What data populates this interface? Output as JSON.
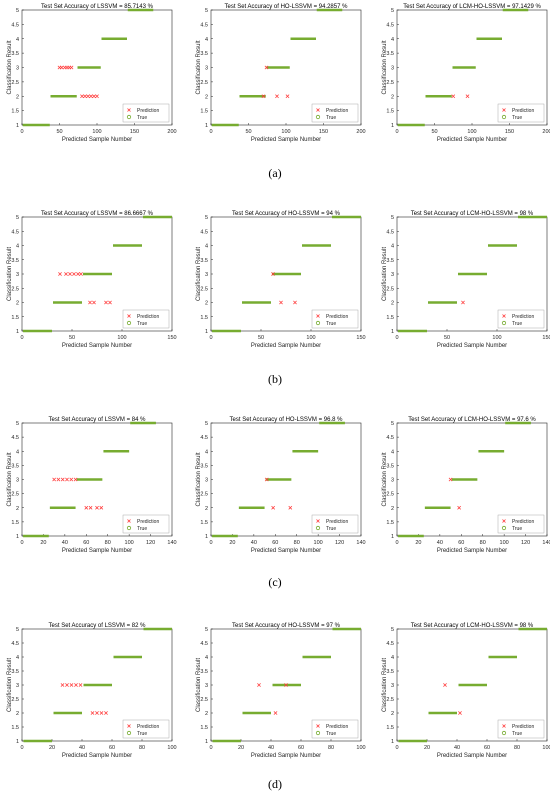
{
  "common": {
    "ylabel": "Classification Result",
    "xlabel": "Predicted Sample Number",
    "legend": [
      "Prediction",
      "True"
    ],
    "yticks": [
      1,
      1.5,
      2,
      2.5,
      3,
      3.5,
      4,
      4.5,
      5
    ],
    "colors": {
      "true": "#77ac30",
      "prediction": "#ff3b3b",
      "axis": "#262626"
    }
  },
  "rows": [
    {
      "label": "(a)",
      "xmax": 200,
      "xticks": [
        0,
        50,
        100,
        150,
        200
      ],
      "classes": [
        [
          1,
          1,
          37
        ],
        [
          2,
          38,
          73
        ],
        [
          3,
          74,
          105
        ],
        [
          4,
          106,
          140
        ],
        [
          5,
          141,
          175
        ]
      ]
    },
    {
      "label": "(b)",
      "xmax": 150,
      "xticks": [
        0,
        50,
        100,
        150
      ],
      "classes": [
        [
          1,
          1,
          30
        ],
        [
          2,
          31,
          60
        ],
        [
          3,
          61,
          90
        ],
        [
          4,
          91,
          120
        ],
        [
          5,
          121,
          150
        ]
      ]
    },
    {
      "label": "(c)",
      "xmax": 140,
      "xticks": [
        0,
        20,
        40,
        60,
        80,
        100,
        120,
        140
      ],
      "classes": [
        [
          1,
          1,
          25
        ],
        [
          2,
          26,
          50
        ],
        [
          3,
          51,
          75
        ],
        [
          4,
          76,
          100
        ],
        [
          5,
          101,
          125
        ]
      ]
    },
    {
      "label": "(d)",
      "xmax": 100,
      "xticks": [
        0,
        20,
        40,
        60,
        80,
        100
      ],
      "classes": [
        [
          1,
          1,
          20
        ],
        [
          2,
          21,
          40
        ],
        [
          3,
          41,
          60
        ],
        [
          4,
          61,
          80
        ],
        [
          5,
          81,
          100
        ]
      ]
    }
  ],
  "chart_data": [
    {
      "type": "scatter",
      "row": 0,
      "col": 0,
      "title": "Test Set Accuracy of LSSVM = 85.7143 %",
      "xlim": [
        0,
        200
      ],
      "ylim": [
        1,
        5
      ],
      "errors": [
        [
          50,
          3
        ],
        [
          53,
          3
        ],
        [
          57,
          3
        ],
        [
          60,
          3
        ],
        [
          63,
          3
        ],
        [
          66,
          3
        ],
        [
          80,
          2
        ],
        [
          84,
          2
        ],
        [
          88,
          2
        ],
        [
          92,
          2
        ],
        [
          96,
          2
        ],
        [
          100,
          2
        ]
      ]
    },
    {
      "type": "scatter",
      "row": 0,
      "col": 1,
      "title": "Test Set Accuracy of HO-LSSVM = 94.2857 %",
      "xlim": [
        0,
        200
      ],
      "ylim": [
        1,
        5
      ],
      "errors": [
        [
          70,
          2
        ],
        [
          74,
          3
        ],
        [
          88,
          2
        ],
        [
          102,
          2
        ]
      ]
    },
    {
      "type": "scatter",
      "row": 0,
      "col": 2,
      "title": "Test Set Accuracy of LCM-HO-LSSVM = 97.1429 %",
      "xlim": [
        0,
        200
      ],
      "ylim": [
        1,
        5
      ],
      "errors": [
        [
          75,
          2
        ],
        [
          94,
          2
        ]
      ]
    },
    {
      "type": "scatter",
      "row": 1,
      "col": 0,
      "title": "Test Set Accuracy of LSSVM = 86.6667 %",
      "xlim": [
        0,
        150
      ],
      "ylim": [
        1,
        5
      ],
      "errors": [
        [
          38,
          3
        ],
        [
          44,
          3
        ],
        [
          48,
          3
        ],
        [
          52,
          3
        ],
        [
          56,
          3
        ],
        [
          59,
          3
        ],
        [
          68,
          2
        ],
        [
          72,
          2
        ],
        [
          84,
          2
        ],
        [
          88,
          2
        ]
      ]
    },
    {
      "type": "scatter",
      "row": 1,
      "col": 1,
      "title": "Test Set Accuracy of HO-LSSVM = 94 %",
      "xlim": [
        0,
        150
      ],
      "ylim": [
        1,
        5
      ],
      "errors": [
        [
          62,
          3
        ],
        [
          70,
          2
        ],
        [
          84,
          2
        ]
      ]
    },
    {
      "type": "scatter",
      "row": 1,
      "col": 2,
      "title": "Test Set Accuracy of LCM-HO-LSSVM = 98 %",
      "xlim": [
        0,
        150
      ],
      "ylim": [
        1,
        5
      ],
      "errors": [
        [
          66,
          2
        ]
      ]
    },
    {
      "type": "scatter",
      "row": 2,
      "col": 0,
      "title": "Test Set Accuracy of LSSVM = 84 %",
      "xlim": [
        0,
        140
      ],
      "ylim": [
        1,
        5
      ],
      "errors": [
        [
          30,
          3
        ],
        [
          34,
          3
        ],
        [
          38,
          3
        ],
        [
          42,
          3
        ],
        [
          46,
          3
        ],
        [
          50,
          3
        ],
        [
          60,
          2
        ],
        [
          64,
          2
        ],
        [
          70,
          2
        ],
        [
          74,
          2
        ]
      ]
    },
    {
      "type": "scatter",
      "row": 2,
      "col": 1,
      "title": "Test Set Accuracy of HO-LSSVM = 96.8 %",
      "xlim": [
        0,
        140
      ],
      "ylim": [
        1,
        5
      ],
      "errors": [
        [
          52,
          3
        ],
        [
          58,
          2
        ],
        [
          74,
          2
        ]
      ]
    },
    {
      "type": "scatter",
      "row": 2,
      "col": 2,
      "title": "Test Set Accuracy of LCM-HO-LSSVM = 97.6 %",
      "xlim": [
        0,
        140
      ],
      "ylim": [
        1,
        5
      ],
      "errors": [
        [
          50,
          3
        ],
        [
          58,
          2
        ]
      ]
    },
    {
      "type": "scatter",
      "row": 3,
      "col": 0,
      "title": "Test Set Accuracy of LSSVM = 82 %",
      "xlim": [
        0,
        100
      ],
      "ylim": [
        1,
        5
      ],
      "errors": [
        [
          27,
          3
        ],
        [
          30,
          3
        ],
        [
          33,
          3
        ],
        [
          36,
          3
        ],
        [
          39,
          3
        ],
        [
          47,
          2
        ],
        [
          50,
          2
        ],
        [
          53,
          2
        ],
        [
          56,
          2
        ]
      ]
    },
    {
      "type": "scatter",
      "row": 3,
      "col": 1,
      "title": "Test Set Accuracy of HO-LSSVM = 97 %",
      "xlim": [
        0,
        100
      ],
      "ylim": [
        1,
        5
      ],
      "errors": [
        [
          32,
          3
        ],
        [
          43,
          2
        ],
        [
          50,
          3
        ]
      ]
    },
    {
      "type": "scatter",
      "row": 3,
      "col": 2,
      "title": "Test Set Accuracy of LCM-HO-LSSVM = 98 %",
      "xlim": [
        0,
        100
      ],
      "ylim": [
        1,
        5
      ],
      "errors": [
        [
          32,
          3
        ],
        [
          42,
          2
        ]
      ]
    }
  ]
}
